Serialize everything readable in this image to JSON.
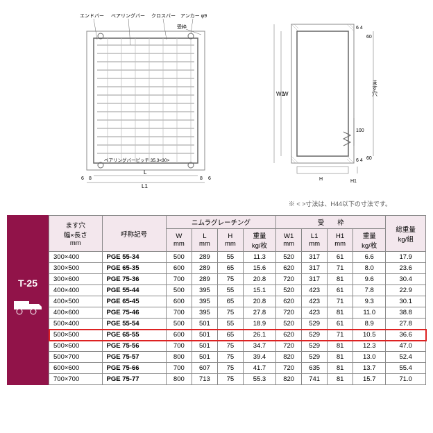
{
  "diagram": {
    "labels": {
      "endbar": "エンドバー",
      "bearingbar": "ベアリングバー",
      "crossbar": "クロスバー",
      "anchor": "アンカー φ9",
      "frame": "受枠",
      "pitch": "ベアリングバーピッチ 35.3<30>",
      "L": "L",
      "L1": "L1",
      "W": "W",
      "W1": "W1",
      "H": "H",
      "H1": "H1",
      "masu": "ます穴",
      "dim6l": "6",
      "dim8l": "8",
      "dim8r": "8",
      "dim6r": "6",
      "dim60t": "60",
      "dim60b": "60",
      "dim64t": "6 4",
      "dim64b": "6 4",
      "dim100": "100"
    },
    "note": "※ < >寸法は、H44以下の寸法です。"
  },
  "badge": {
    "t25": "T-25"
  },
  "table": {
    "header_group1": "ます穴\n幅×長さ\nmm",
    "header_group2": "呼称記号",
    "group_grating": "ニムラグレーチング",
    "group_frame": "受　　枠",
    "header_total": "総重量\nkg/組",
    "cols_grating": [
      "W\nmm",
      "L\nmm",
      "H\nmm",
      "重量\nkg/枚"
    ],
    "cols_frame": [
      "W1\nmm",
      "L1\nmm",
      "H1\nmm",
      "重量\nkg/枚"
    ],
    "rows": [
      {
        "size": "300×400",
        "code": "PGE 55-34",
        "v": [
          "500",
          "289",
          "55",
          "11.3",
          "520",
          "317",
          "61",
          "6.6",
          "17.9"
        ],
        "hl": false
      },
      {
        "size": "300×500",
        "code": "PGE 65-35",
        "v": [
          "600",
          "289",
          "65",
          "15.6",
          "620",
          "317",
          "71",
          "8.0",
          "23.6"
        ],
        "hl": false
      },
      {
        "size": "300×600",
        "code": "PGE 75-36",
        "v": [
          "700",
          "289",
          "75",
          "20.8",
          "720",
          "317",
          "81",
          "9.6",
          "30.4"
        ],
        "hl": false
      },
      {
        "size": "400×400",
        "code": "PGE 55-44",
        "v": [
          "500",
          "395",
          "55",
          "15.1",
          "520",
          "423",
          "61",
          "7.8",
          "22.9"
        ],
        "hl": false
      },
      {
        "size": "400×500",
        "code": "PGE 65-45",
        "v": [
          "600",
          "395",
          "65",
          "20.8",
          "620",
          "423",
          "71",
          "9.3",
          "30.1"
        ],
        "hl": false
      },
      {
        "size": "400×600",
        "code": "PGE 75-46",
        "v": [
          "700",
          "395",
          "75",
          "27.8",
          "720",
          "423",
          "81",
          "11.0",
          "38.8"
        ],
        "hl": false
      },
      {
        "size": "500×400",
        "code": "PGE 55-54",
        "v": [
          "500",
          "501",
          "55",
          "18.9",
          "520",
          "529",
          "61",
          "8.9",
          "27.8"
        ],
        "hl": false
      },
      {
        "size": "500×500",
        "code": "PGE 65-55",
        "v": [
          "600",
          "501",
          "65",
          "26.1",
          "620",
          "529",
          "71",
          "10.5",
          "36.6"
        ],
        "hl": true
      },
      {
        "size": "500×600",
        "code": "PGE 75-56",
        "v": [
          "700",
          "501",
          "75",
          "34.7",
          "720",
          "529",
          "81",
          "12.3",
          "47.0"
        ],
        "hl": false
      },
      {
        "size": "500×700",
        "code": "PGE 75-57",
        "v": [
          "800",
          "501",
          "75",
          "39.4",
          "820",
          "529",
          "81",
          "13.0",
          "52.4"
        ],
        "hl": false
      },
      {
        "size": "600×600",
        "code": "PGE 75-66",
        "v": [
          "700",
          "607",
          "75",
          "41.7",
          "720",
          "635",
          "81",
          "13.7",
          "55.4"
        ],
        "hl": false
      },
      {
        "size": "700×700",
        "code": "PGE 75-77",
        "v": [
          "800",
          "713",
          "75",
          "55.3",
          "820",
          "741",
          "81",
          "15.7",
          "71.0"
        ],
        "hl": false
      }
    ]
  },
  "colors": {
    "badge_bg": "#911349",
    "header_bg": "#f3e7ed",
    "highlight": "#d22"
  }
}
